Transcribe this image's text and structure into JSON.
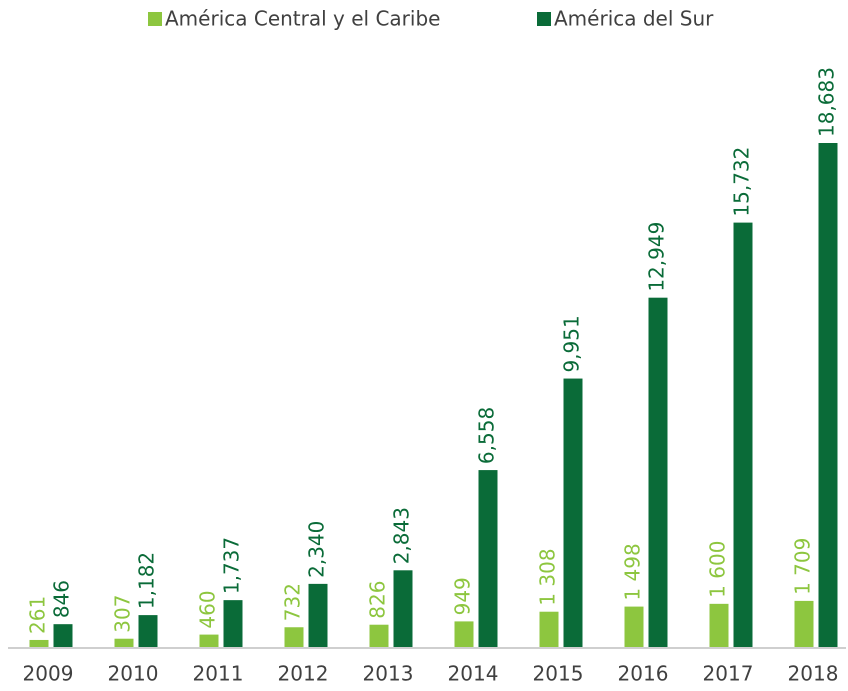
{
  "chart_data": {
    "type": "bar",
    "categories": [
      "2009",
      "2010",
      "2011",
      "2012",
      "2013",
      "2014",
      "2015",
      "2016",
      "2017",
      "2018"
    ],
    "series": [
      {
        "name": "América Central y el Caribe",
        "color": "#8dc63f",
        "values": [
          261,
          307,
          460,
          732,
          826,
          949,
          1308,
          1498,
          1600,
          1709
        ],
        "value_labels": [
          "261",
          "307",
          "460",
          "732",
          "826",
          "949",
          "1 308",
          "1 498",
          "1 600",
          "1 709"
        ]
      },
      {
        "name": "América del Sur",
        "color": "#0a6b38",
        "values": [
          846,
          1182,
          1737,
          2340,
          2843,
          6558,
          9951,
          12949,
          15732,
          18683
        ],
        "value_labels": [
          "846",
          "1,182",
          "1,737",
          "2,340",
          "2,843",
          "6,558",
          "9,951",
          "12,949",
          "15,732",
          "18,683"
        ]
      }
    ],
    "legend": "top"
  }
}
